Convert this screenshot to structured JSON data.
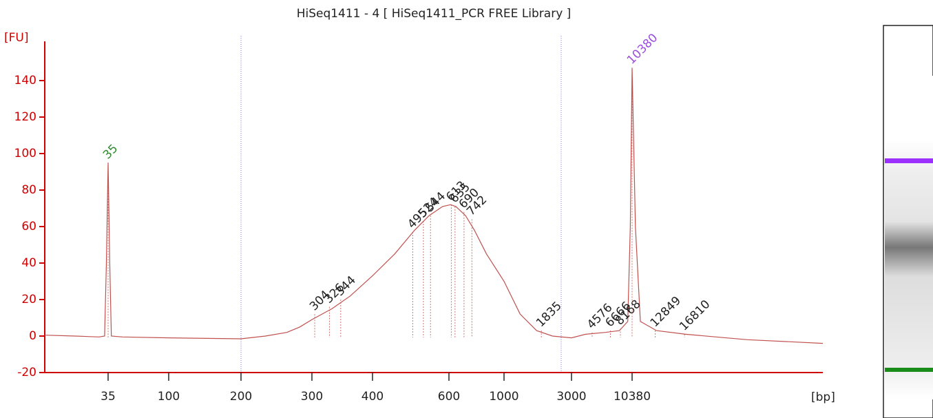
{
  "chart_data": {
    "type": "line",
    "title": "HiSeq1411 - 4  [ HiSeq1411_PCR FREE Library ]",
    "y_label": "[FU]",
    "x_label": "[bp]",
    "xlim": [
      12,
      60000
    ],
    "xticks": [
      35,
      100,
      200,
      300,
      400,
      600,
      1000,
      3000,
      10380
    ],
    "ylim": [
      -20,
      160
    ],
    "yticks": [
      -20,
      0,
      20,
      40,
      60,
      80,
      100,
      120,
      140
    ],
    "series": [
      {
        "name": "HiSeq1411 - 4",
        "color": "#c0504d",
        "x": [
          12,
          20,
          30,
          33,
          34,
          35,
          36,
          37,
          45,
          100,
          200,
          230,
          260,
          280,
          300,
          330,
          360,
          400,
          450,
          500,
          540,
          580,
          610,
          640,
          700,
          760,
          850,
          1000,
          1300,
          1700,
          2200,
          3000,
          4000,
          6000,
          8000,
          9500,
          10000,
          10380,
          10700,
          11200,
          13000,
          17000,
          30000,
          60000
        ],
        "values": [
          0.5,
          0,
          -0.5,
          0,
          40,
          95,
          40,
          0,
          -0.5,
          -1,
          -1.5,
          0,
          2,
          5,
          9,
          15,
          22,
          33,
          45,
          58,
          66,
          71,
          72,
          71,
          66,
          58,
          45,
          30,
          12,
          3,
          0,
          -1,
          1,
          2,
          3,
          8,
          60,
          147,
          60,
          8,
          3,
          1,
          -2,
          -4
        ]
      }
    ],
    "peaks": {
      "x": [
        35,
        304,
        326,
        344,
        495,
        524,
        544,
        613,
        635,
        690,
        742,
        1835,
        4576,
        6666,
        8168,
        10380,
        12849,
        16810
      ],
      "values": [
        95,
        12,
        16,
        20,
        57,
        63,
        66,
        72,
        71,
        68,
        64,
        3,
        2,
        3,
        4,
        147,
        3,
        1
      ],
      "colors": [
        "#2e8b2e",
        "#222",
        "#222",
        "#222",
        "#222",
        "#222",
        "#222",
        "#222",
        "#222",
        "#222",
        "#222",
        "#222",
        "#222",
        "#222",
        "#222",
        "#9b4fd9",
        "#222",
        "#222"
      ]
    }
  }
}
